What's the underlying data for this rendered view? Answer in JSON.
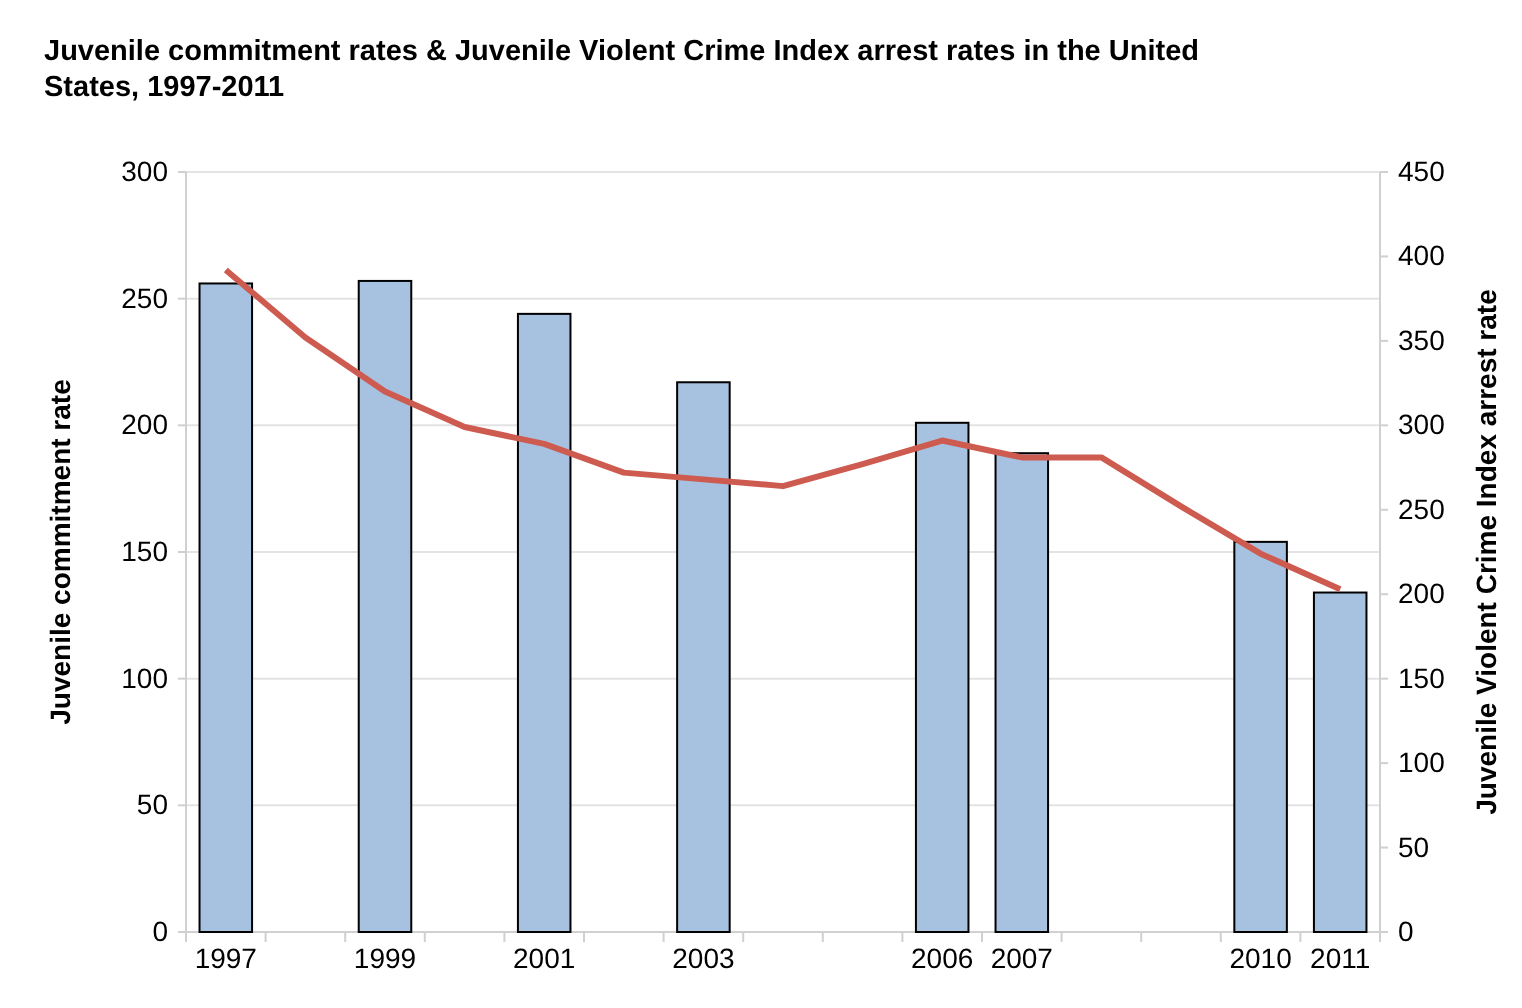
{
  "chart_data": {
    "type": "bar",
    "title": "Juvenile commitment rates & Juvenile Violent Crime Index arrest rates in the United States, 1997-2011",
    "ylabel": "Juvenile commitment rate",
    "y2label": "Juvenile Violent Crime Index arrest rate",
    "categories": [
      "1997",
      null,
      "1999",
      null,
      "2001",
      null,
      "2003",
      null,
      null,
      "2006",
      "2007",
      null,
      null,
      "2010",
      "2011"
    ],
    "series": [
      {
        "color": "#a7c1e0",
        "values": [
          256,
          null,
          257,
          null,
          244,
          null,
          217,
          null,
          null,
          201,
          189,
          null,
          null,
          154,
          134
        ]
      },
      {
        "type": "line",
        "axis": "y2",
        "color": "#cd5b50",
        "values": [
          392,
          352,
          320,
          299,
          289,
          272,
          268,
          264,
          277,
          291,
          281,
          281,
          252,
          224,
          203
        ]
      }
    ],
    "ylim": [
      0,
      300
    ],
    "yticks": [
      0,
      50,
      100,
      150,
      200,
      250,
      300
    ],
    "y2lim": [
      0,
      450
    ],
    "y2ticks": [
      0,
      50,
      100,
      150,
      200,
      250,
      300,
      350,
      400,
      450
    ],
    "grid": "y"
  }
}
